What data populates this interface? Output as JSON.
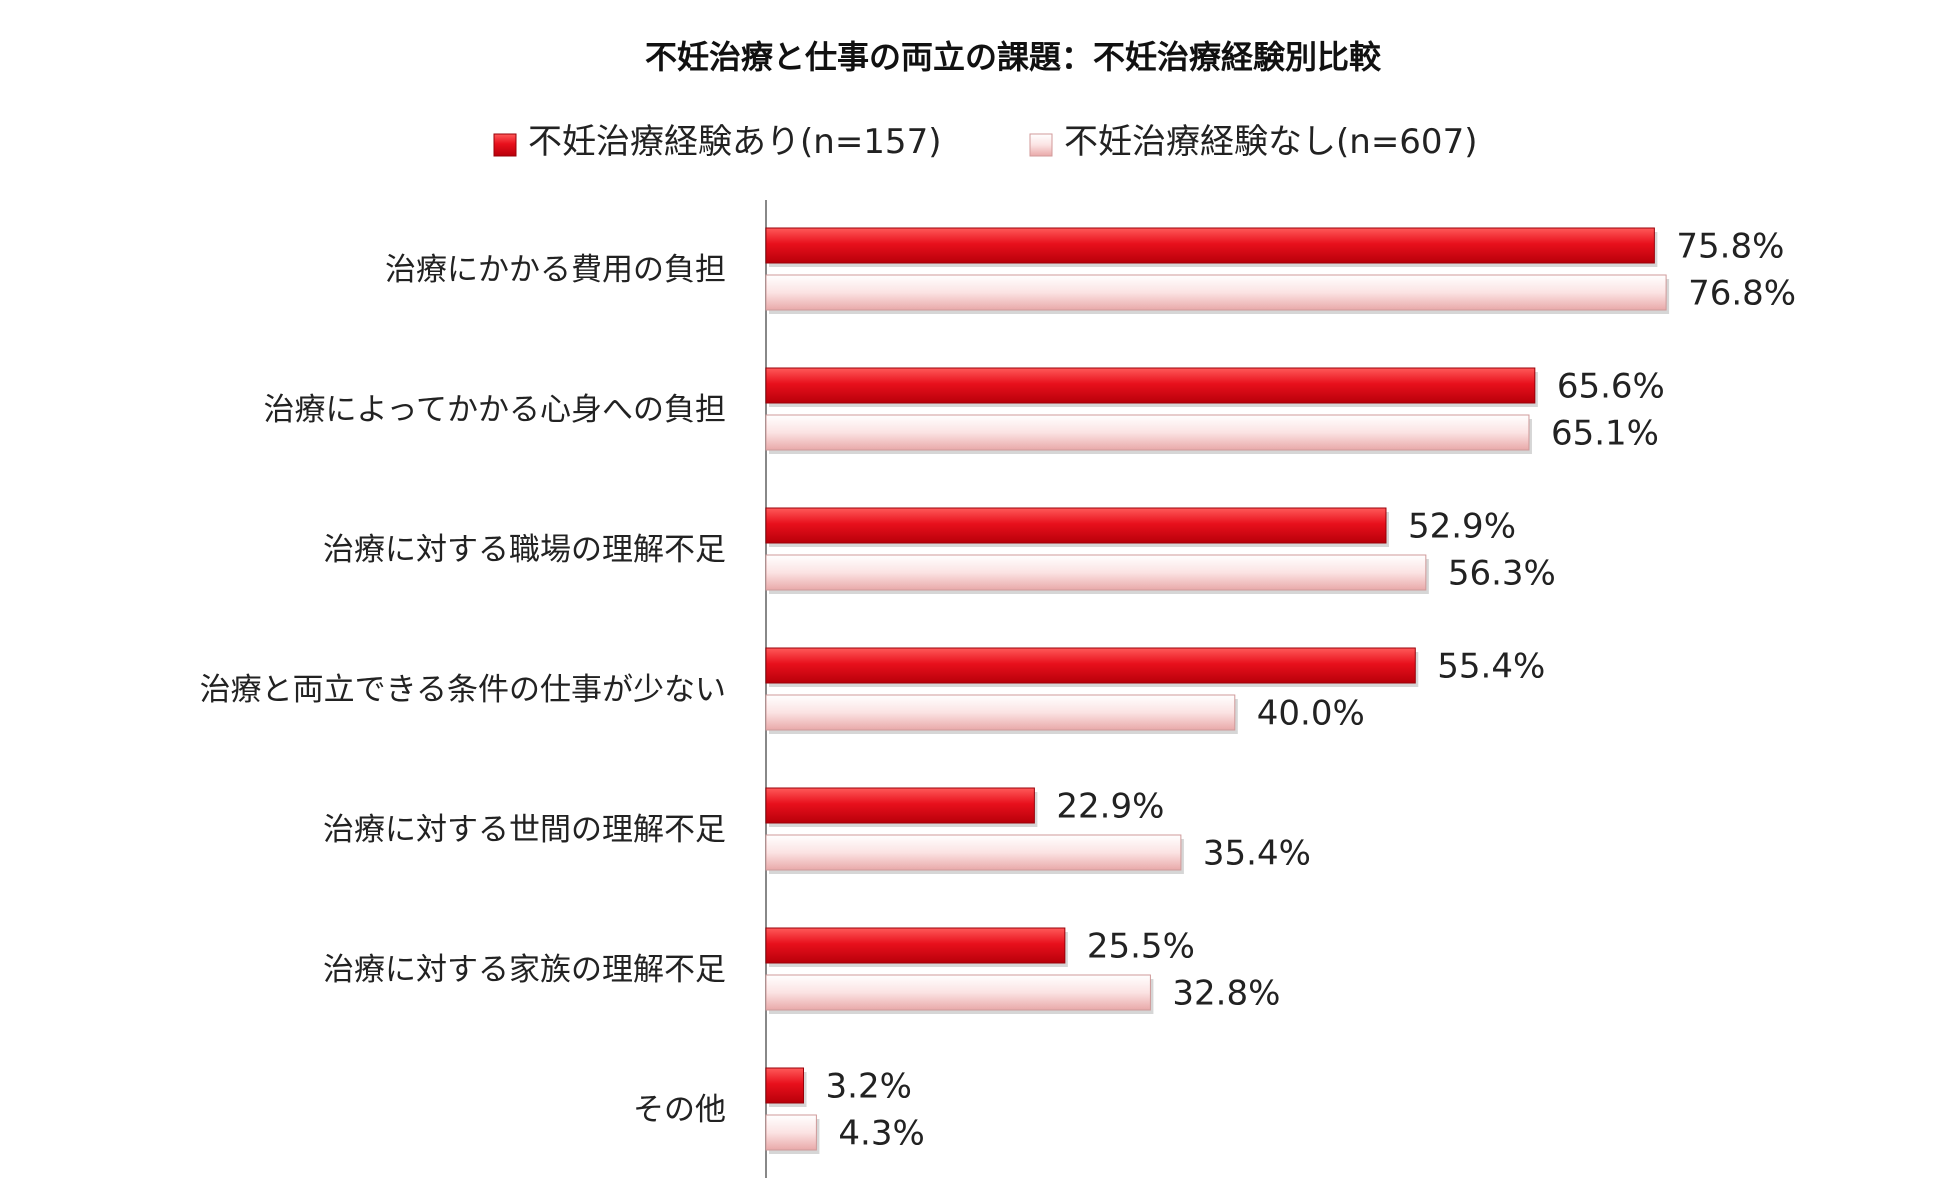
{
  "chart_data": {
    "type": "bar",
    "orientation": "horizontal",
    "title": "不妊治療と仕事の両立の課題：不妊治療経験別比較",
    "legend_position": "top",
    "categories": [
      "治療にかかる費用の負担",
      "治療によってかかる心身への負担",
      "治療に対する職場の理解不足",
      "治療と両立できる条件の仕事が少ない",
      "治療に対する世間の理解不足",
      "治療に対する家族の理解不足",
      "その他"
    ],
    "series": [
      {
        "name": "不妊治療経験あり(n=157)",
        "values": [
          75.8,
          65.6,
          52.9,
          55.4,
          22.9,
          25.5,
          3.2
        ],
        "labels": [
          "75.8%",
          "65.6%",
          "52.9%",
          "55.4%",
          "22.9%",
          "25.5%",
          "3.2%"
        ],
        "color": "#e8101c"
      },
      {
        "name": "不妊治療経験なし(n=607)",
        "values": [
          76.8,
          65.1,
          56.3,
          40.0,
          35.4,
          32.8,
          4.3
        ],
        "labels": [
          "76.8%",
          "65.1%",
          "56.3%",
          "40.0%",
          "35.4%",
          "32.8%",
          "4.3%"
        ],
        "color": "#f6c8c8"
      }
    ],
    "xlim": [
      0,
      100
    ],
    "grid": false
  }
}
